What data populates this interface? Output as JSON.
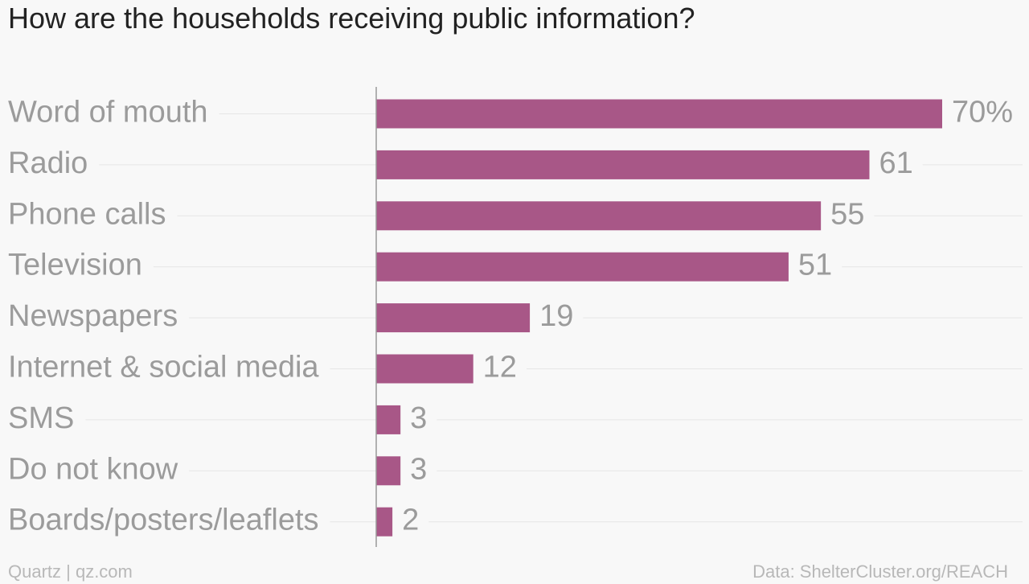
{
  "title": "How are the households receiving public information?",
  "footer": {
    "source_left": "Quartz | qz.com",
    "source_right": "Data: ShelterCluster.org/REACH"
  },
  "colors": {
    "bar": "#a85787",
    "label": "#9b9b9b",
    "gridline": "#e6e6e6",
    "axis": "#999999",
    "background": "#f8f8f8"
  },
  "chart_data": {
    "type": "bar",
    "orientation": "horizontal",
    "categories": [
      "Word of mouth",
      "Radio",
      "Phone calls",
      "Television",
      "Newspapers",
      "Internet & social media",
      "SMS",
      "Do not know",
      "Boards/posters/leaflets"
    ],
    "values": [
      70,
      61,
      55,
      51,
      19,
      12,
      3,
      3,
      2
    ],
    "value_labels": [
      "70%",
      "61",
      "55",
      "51",
      "19",
      "12",
      "3",
      "3",
      "2"
    ],
    "unit": "%",
    "title": "How are the households receiving public information?",
    "xlim": [
      0,
      70
    ],
    "grid": true,
    "legend": "none"
  }
}
